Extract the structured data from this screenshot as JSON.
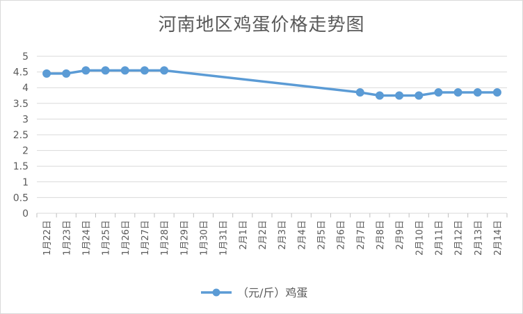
{
  "chart_data": {
    "type": "line",
    "title": "河南地区鸡蛋价格走势图",
    "categories": [
      "1月22日",
      "1月23日",
      "1月24日",
      "1月25日",
      "1月26日",
      "1月27日",
      "1月28日",
      "1月29日",
      "1月30日",
      "1月31日",
      "2月1日",
      "2月2日",
      "2月3日",
      "2月4日",
      "2月5日",
      "2月6日",
      "2月7日",
      "2月8日",
      "2月9日",
      "2月10日",
      "2月11日",
      "2月12日",
      "2月13日",
      "2月14日"
    ],
    "yticks": [
      "0",
      "0.5",
      "1",
      "1.5",
      "2",
      "2.5",
      "3",
      "3.5",
      "4",
      "4.5",
      "5"
    ],
    "ylim": [
      0,
      5
    ],
    "grid": true,
    "legend_position": "bottom",
    "series": [
      {
        "name": "（元/斤）鸡蛋",
        "color": "#5b9bd5",
        "values": [
          4.45,
          4.45,
          4.55,
          4.55,
          4.55,
          4.55,
          4.55,
          null,
          null,
          null,
          null,
          null,
          null,
          null,
          null,
          null,
          3.85,
          3.75,
          3.75,
          3.75,
          3.85,
          3.85,
          3.85,
          3.85
        ]
      }
    ]
  }
}
